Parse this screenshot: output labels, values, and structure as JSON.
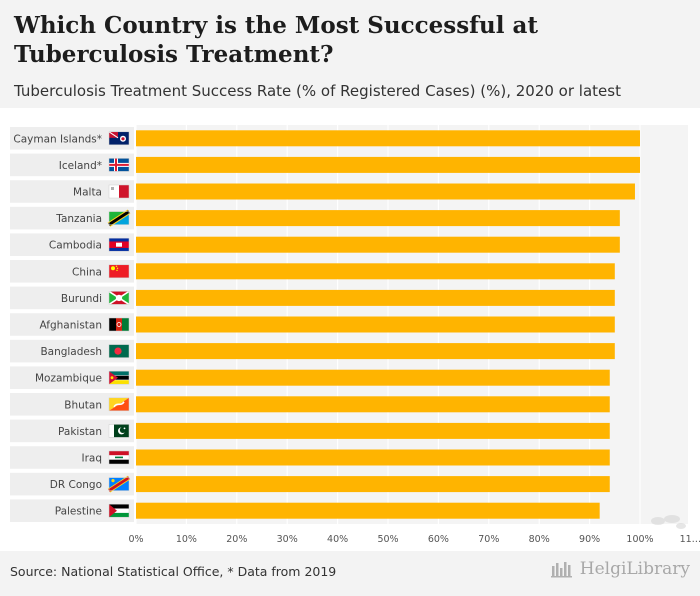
{
  "title": "Which Country is the Most Successful at Tuberculosis Treatment?",
  "subtitle": "Tuberculosis Treatment Success Rate (% of Registered Cases) (%), 2020 or latest",
  "source": "Source: National Statistical Office, * Data from 2019",
  "brand": "HelgiLibrary",
  "colors": {
    "bar": "#ffb400",
    "row_band": "#eeeeee",
    "grid": "#dddddd",
    "header_bg": "#f3f3f3"
  },
  "chart_data": {
    "type": "bar",
    "orientation": "horizontal",
    "categories": [
      "Cayman Islands*",
      "Iceland*",
      "Malta",
      "Tanzania",
      "Cambodia",
      "China",
      "Burundi",
      "Afghanistan",
      "Bangladesh",
      "Mozambique",
      "Bhutan",
      "Pakistan",
      "Iraq",
      "DR Congo",
      "Palestine"
    ],
    "flags": [
      "cayman-islands-flag",
      "iceland-flag",
      "malta-flag",
      "tanzania-flag",
      "cambodia-flag",
      "china-flag",
      "burundi-flag",
      "afghanistan-flag",
      "bangladesh-flag",
      "mozambique-flag",
      "bhutan-flag",
      "pakistan-flag",
      "iraq-flag",
      "dr-congo-flag",
      "palestine-flag"
    ],
    "values": [
      100,
      100,
      99,
      96,
      96,
      95,
      95,
      95,
      95,
      94,
      94,
      94,
      94,
      94,
      92
    ],
    "x_ticks": [
      "0%",
      "10%",
      "20%",
      "30%",
      "40%",
      "50%",
      "60%",
      "70%",
      "80%",
      "90%",
      "100%",
      "11…"
    ],
    "xlim": [
      0,
      110
    ],
    "grid": true
  }
}
